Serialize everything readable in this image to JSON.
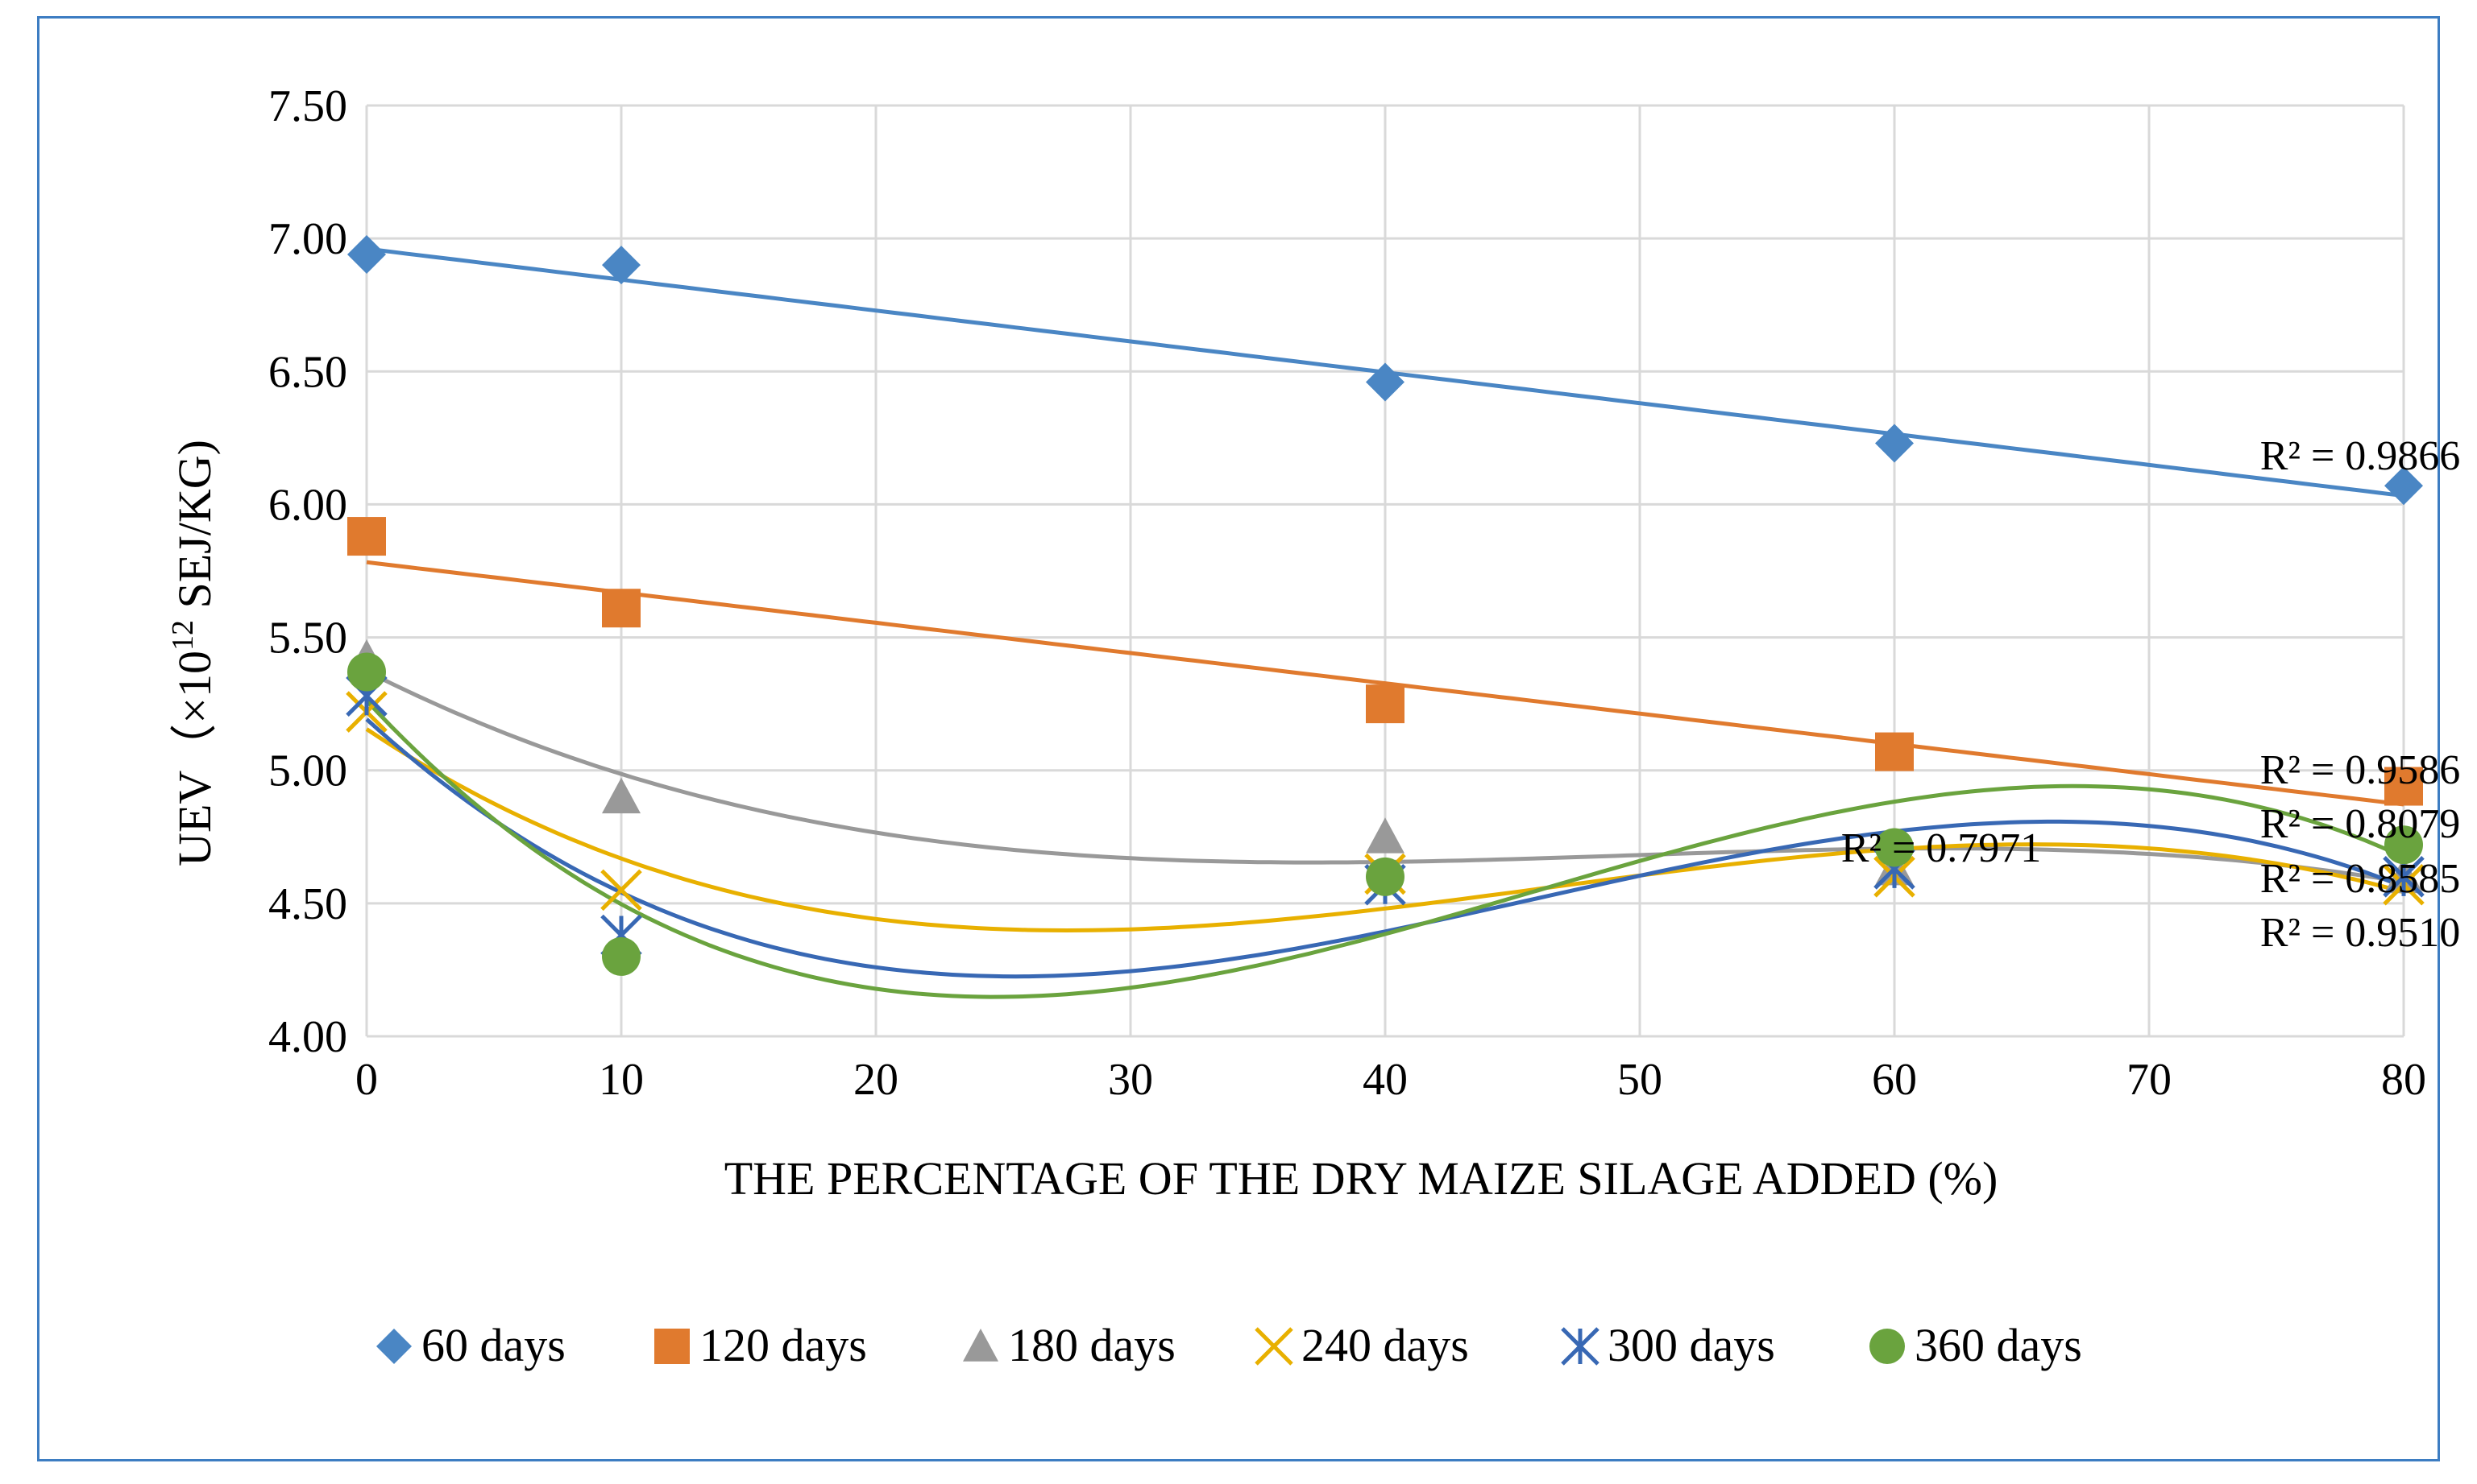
{
  "chart_data": {
    "type": "scatter",
    "xlabel": "THE PERCENTAGE OF THE DRY MAIZE SILAGE ADDED (%)",
    "ylabel_main": "UEV（×10",
    "ylabel_sup": "12",
    "ylabel_unit": " SEJ/KG)",
    "xlim": [
      0,
      80
    ],
    "ylim": [
      4.0,
      7.5
    ],
    "x_ticks": [
      "0",
      "10",
      "20",
      "30",
      "40",
      "50",
      "60",
      "70",
      "80"
    ],
    "y_ticks": [
      "4.00",
      "4.50",
      "5.00",
      "5.50",
      "6.00",
      "6.50",
      "7.00",
      "7.50"
    ],
    "grid": true,
    "legend_position": "bottom",
    "series": [
      {
        "name": "60 days",
        "color": "#4a86c4",
        "marker": "diamond",
        "x": [
          0,
          10,
          40,
          60,
          80
        ],
        "y": [
          6.94,
          6.9,
          6.46,
          6.23,
          6.07
        ],
        "trend": "linear",
        "r2": "R² = 0.9866"
      },
      {
        "name": "120 days",
        "color": "#e07a2e",
        "marker": "square",
        "x": [
          0,
          10,
          40,
          60,
          80
        ],
        "y": [
          5.88,
          5.61,
          5.25,
          5.07,
          4.94
        ],
        "trend": "linear",
        "r2": "R² = 0.9586"
      },
      {
        "name": "180 days",
        "color": "#999999",
        "marker": "triangle",
        "x": [
          0,
          10,
          40,
          60,
          80
        ],
        "y": [
          5.42,
          4.9,
          4.75,
          4.63,
          4.6
        ],
        "trend": "poly",
        "r2": "R² = 0.7971"
      },
      {
        "name": "240 days",
        "color": "#e8b000",
        "marker": "x",
        "x": [
          0,
          10,
          40,
          60,
          80
        ],
        "y": [
          5.22,
          4.55,
          4.61,
          4.6,
          4.57
        ],
        "trend": "poly",
        "r2": "R² = 0.8079"
      },
      {
        "name": "300 days",
        "color": "#3868b4",
        "marker": "asterisk",
        "x": [
          0,
          10,
          40,
          60,
          80
        ],
        "y": [
          5.28,
          4.38,
          4.57,
          4.63,
          4.6
        ],
        "trend": "poly",
        "r2": "R² = 0.8585"
      },
      {
        "name": "360 days",
        "color": "#6aa33e",
        "marker": "circle",
        "x": [
          0,
          10,
          40,
          60,
          80
        ],
        "y": [
          5.37,
          4.3,
          4.6,
          4.71,
          4.72
        ],
        "trend": "poly",
        "r2": "R² = 0.9510"
      }
    ]
  }
}
